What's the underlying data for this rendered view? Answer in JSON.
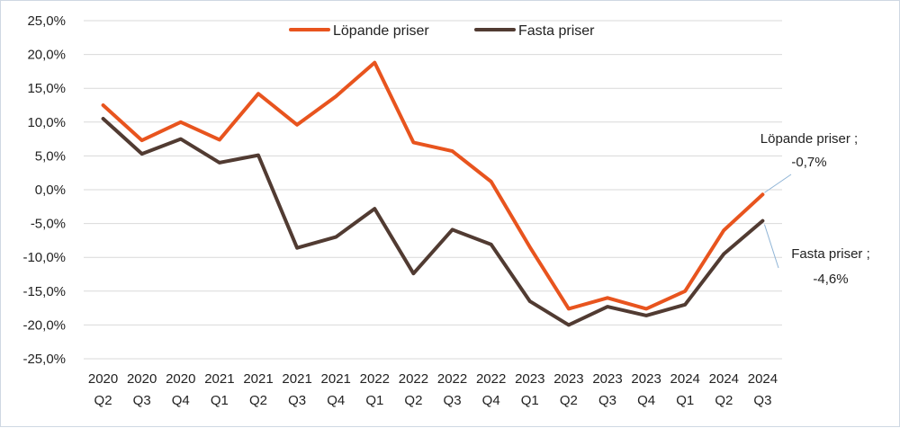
{
  "chart_data": {
    "type": "line",
    "title": "",
    "xlabel": "",
    "ylabel": "",
    "ylim": [
      -25,
      25
    ],
    "y_step": 5,
    "y_tick_labels": [
      "25,0%",
      "20,0%",
      "15,0%",
      "10,0%",
      "5,0%",
      "0,0%",
      "-5,0%",
      "-10,0%",
      "-15,0%",
      "-20,0%",
      "-25,0%"
    ],
    "grid": true,
    "legend_position": "top-center",
    "categories": [
      [
        "2020",
        "Q2"
      ],
      [
        "2020",
        "Q3"
      ],
      [
        "2020",
        "Q4"
      ],
      [
        "2021",
        "Q1"
      ],
      [
        "2021",
        "Q2"
      ],
      [
        "2021",
        "Q3"
      ],
      [
        "2021",
        "Q4"
      ],
      [
        "2022",
        "Q1"
      ],
      [
        "2022",
        "Q2"
      ],
      [
        "2022",
        "Q3"
      ],
      [
        "2022",
        "Q4"
      ],
      [
        "2023",
        "Q1"
      ],
      [
        "2023",
        "Q2"
      ],
      [
        "2023",
        "Q3"
      ],
      [
        "2023",
        "Q4"
      ],
      [
        "2024",
        "Q1"
      ],
      [
        "2024",
        "Q2"
      ],
      [
        "2024",
        "Q3"
      ]
    ],
    "series": [
      {
        "name": "Löpande priser",
        "color": "#e8541e",
        "values": [
          12.5,
          7.3,
          10.0,
          7.4,
          14.2,
          9.6,
          13.8,
          18.8,
          7.0,
          5.7,
          1.2,
          -8.5,
          -17.6,
          -16.0,
          -17.6,
          -15.0,
          -6.0,
          -0.7
        ]
      },
      {
        "name": "Fasta priser",
        "color": "#513b32",
        "values": [
          10.5,
          5.3,
          7.5,
          4.0,
          5.1,
          -8.6,
          -7.0,
          -2.8,
          -12.4,
          -5.9,
          -8.1,
          -16.5,
          -20.0,
          -17.3,
          -18.6,
          -17.0,
          -9.5,
          -4.6
        ]
      }
    ],
    "annotations": [
      {
        "series": "Löpande priser",
        "line1": "Löpande priser ;",
        "line2": "-0,7%"
      },
      {
        "series": "Fasta priser",
        "line1": "Fasta priser ;",
        "line2": "-4,6%"
      }
    ]
  }
}
